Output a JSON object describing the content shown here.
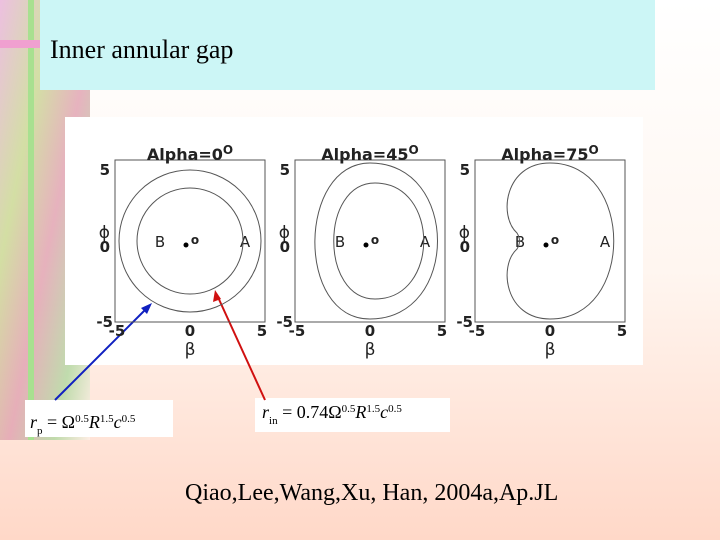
{
  "header": {
    "title": "Inner annular gap"
  },
  "figure": {
    "degree": "O",
    "y_label": "ϕ",
    "x_label": "β",
    "ticks": [
      "-5",
      "0",
      "5"
    ],
    "point_labels": [
      "B",
      "A"
    ],
    "center_mark": "o",
    "panels": [
      {
        "title": "Alpha=0"
      },
      {
        "title": "Alpha=45"
      },
      {
        "title": "Alpha=75"
      }
    ]
  },
  "formulas": [
    [
      {
        "text": "r",
        "pos": "base"
      },
      {
        "text": "p",
        "pos": "sub"
      },
      {
        "text": " = ",
        "pos": "base"
      },
      {
        "text": "Ω",
        "pos": "base"
      },
      {
        "text": "0.5",
        "pos": "sup"
      },
      {
        "text": "R",
        "pos": "base"
      },
      {
        "text": "1.5",
        "pos": "sup"
      },
      {
        "text": "c",
        "pos": "base"
      },
      {
        "text": "0.5",
        "pos": "sup"
      }
    ],
    [
      {
        "text": "r",
        "pos": "base"
      },
      {
        "text": "in",
        "pos": "sub"
      },
      {
        "text": " = ",
        "pos": "base"
      },
      {
        "text": "0.74Ω",
        "pos": "base"
      },
      {
        "text": "0.5",
        "pos": "sup"
      },
      {
        "text": "R",
        "pos": "base"
      },
      {
        "text": "1.5",
        "pos": "sup"
      },
      {
        "text": "c",
        "pos": "base"
      },
      {
        "text": "0.5",
        "pos": "sup"
      }
    ]
  ],
  "citation": "Qiao,Lee,Wang,Xu, Han, 2004a,Ap.JL"
}
